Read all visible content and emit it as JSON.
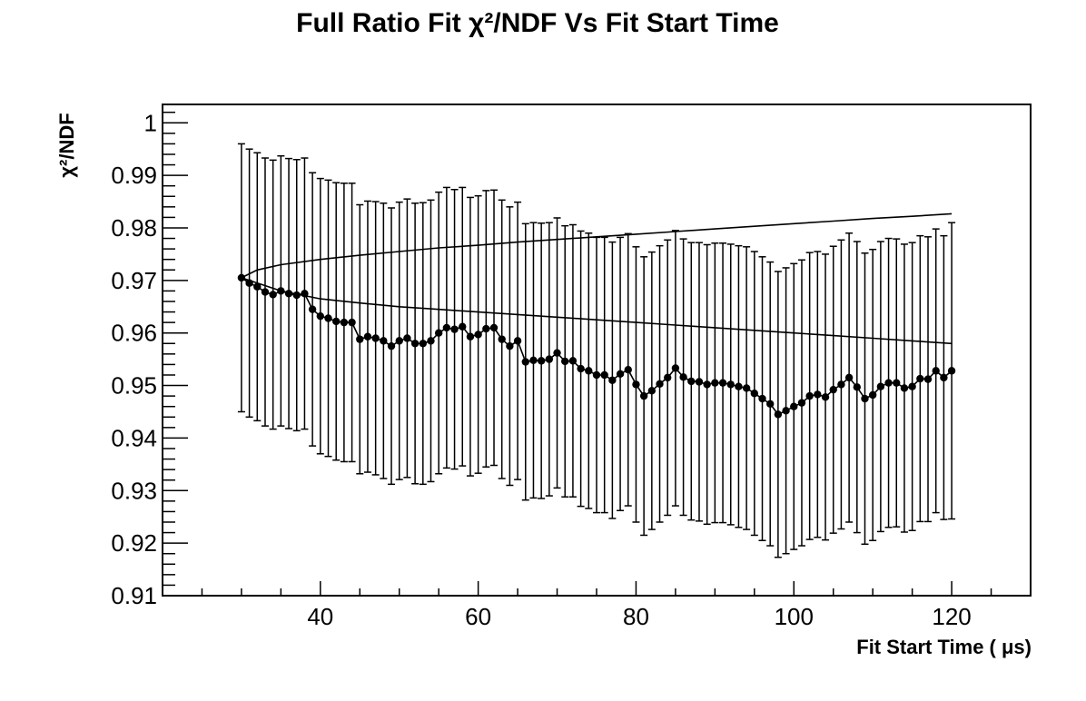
{
  "chart_data": {
    "type": "scatter",
    "title": "Full Ratio Fit  χ²/NDF Vs Fit Start Time",
    "xlabel": "Fit Start Time ( μs)",
    "ylabel": "χ²/NDF",
    "xlim": [
      20,
      130
    ],
    "ylim": [
      0.91,
      1.0035
    ],
    "xtick_labels": [
      "40",
      "60",
      "80",
      "100",
      "120"
    ],
    "ytick_labels": [
      "0.91",
      "0.92",
      "0.93",
      "0.94",
      "0.95",
      "0.96",
      "0.97",
      "0.98",
      "0.99",
      "1"
    ],
    "grid": false,
    "legend": "none",
    "series": [
      {
        "marker": "circle",
        "line": true,
        "color": "#000000",
        "x": [
          30,
          31,
          32,
          33,
          34,
          35,
          36,
          37,
          38,
          39,
          40,
          41,
          42,
          43,
          44,
          45,
          46,
          47,
          48,
          49,
          50,
          51,
          52,
          53,
          54,
          55,
          56,
          57,
          58,
          59,
          60,
          61,
          62,
          63,
          64,
          65,
          66,
          67,
          68,
          69,
          70,
          71,
          72,
          73,
          74,
          75,
          76,
          77,
          78,
          79,
          80,
          81,
          82,
          83,
          84,
          85,
          86,
          87,
          88,
          89,
          90,
          91,
          92,
          93,
          94,
          95,
          96,
          97,
          98,
          99,
          100,
          101,
          102,
          103,
          104,
          105,
          106,
          107,
          108,
          109,
          110,
          111,
          112,
          113,
          114,
          115,
          116,
          117,
          118,
          119,
          120
        ],
        "y": [
          0.9705,
          0.9695,
          0.9688,
          0.9678,
          0.9673,
          0.968,
          0.9675,
          0.9672,
          0.9675,
          0.9645,
          0.9632,
          0.9628,
          0.9622,
          0.962,
          0.962,
          0.9588,
          0.9593,
          0.959,
          0.9585,
          0.9575,
          0.9585,
          0.959,
          0.958,
          0.958,
          0.9585,
          0.96,
          0.961,
          0.9607,
          0.9612,
          0.9593,
          0.9597,
          0.9608,
          0.961,
          0.9588,
          0.9575,
          0.9585,
          0.9545,
          0.9548,
          0.9547,
          0.955,
          0.9562,
          0.9546,
          0.9547,
          0.9532,
          0.9528,
          0.952,
          0.952,
          0.951,
          0.9522,
          0.953,
          0.9502,
          0.948,
          0.949,
          0.9503,
          0.9515,
          0.9533,
          0.9516,
          0.9508,
          0.9507,
          0.9502,
          0.9505,
          0.9505,
          0.9502,
          0.9498,
          0.9495,
          0.9485,
          0.9475,
          0.9465,
          0.9445,
          0.9452,
          0.946,
          0.9467,
          0.948,
          0.9483,
          0.9478,
          0.9492,
          0.9502,
          0.9515,
          0.9497,
          0.9475,
          0.9482,
          0.9498,
          0.9505,
          0.9505,
          0.9495,
          0.9498,
          0.9513,
          0.9512,
          0.9528,
          0.9515,
          0.9528
        ],
        "y_error": [
          0.0255,
          0.0255,
          0.0255,
          0.0255,
          0.0256,
          0.0257,
          0.0257,
          0.0258,
          0.0258,
          0.026,
          0.0262,
          0.0263,
          0.0264,
          0.0265,
          0.0265,
          0.0256,
          0.0258,
          0.026,
          0.0262,
          0.0263,
          0.0264,
          0.0265,
          0.0267,
          0.0268,
          0.0268,
          0.0268,
          0.0267,
          0.0266,
          0.0265,
          0.0265,
          0.0264,
          0.0263,
          0.0262,
          0.0265,
          0.0265,
          0.0264,
          0.0263,
          0.0262,
          0.0262,
          0.026,
          0.0257,
          0.0258,
          0.0259,
          0.0262,
          0.0262,
          0.0262,
          0.0262,
          0.0263,
          0.026,
          0.0259,
          0.0262,
          0.0265,
          0.0264,
          0.0263,
          0.0262,
          0.0262,
          0.0263,
          0.0264,
          0.0265,
          0.0266,
          0.0266,
          0.0266,
          0.0267,
          0.0268,
          0.0269,
          0.027,
          0.027,
          0.027,
          0.0272,
          0.0272,
          0.0272,
          0.0272,
          0.0273,
          0.0272,
          0.0272,
          0.0273,
          0.0275,
          0.0275,
          0.0277,
          0.0277,
          0.0277,
          0.0276,
          0.0275,
          0.0274,
          0.0274,
          0.0274,
          0.0272,
          0.0271,
          0.027,
          0.027,
          0.0282
        ]
      }
    ],
    "curves": [
      {
        "style": "line",
        "color": "#000000",
        "x": [
          30,
          32,
          35,
          40,
          45,
          50,
          55,
          60,
          65,
          70,
          75,
          80,
          85,
          90,
          95,
          100,
          105,
          110,
          115,
          120
        ],
        "y": [
          0.9705,
          0.972,
          0.973,
          0.974,
          0.9748,
          0.9755,
          0.9762,
          0.9767,
          0.9773,
          0.9778,
          0.9783,
          0.9788,
          0.9793,
          0.9798,
          0.9803,
          0.9808,
          0.9813,
          0.9818,
          0.9822,
          0.9827
        ]
      },
      {
        "style": "line",
        "color": "#000000",
        "x": [
          30,
          35,
          40,
          45,
          50,
          55,
          60,
          65,
          70,
          75,
          80,
          85,
          90,
          95,
          100,
          105,
          110,
          115,
          120
        ],
        "y": [
          0.9705,
          0.968,
          0.9665,
          0.9657,
          0.965,
          0.9645,
          0.964,
          0.9635,
          0.963,
          0.9625,
          0.962,
          0.9615,
          0.961,
          0.9605,
          0.96,
          0.9595,
          0.959,
          0.9585,
          0.958
        ]
      }
    ]
  }
}
